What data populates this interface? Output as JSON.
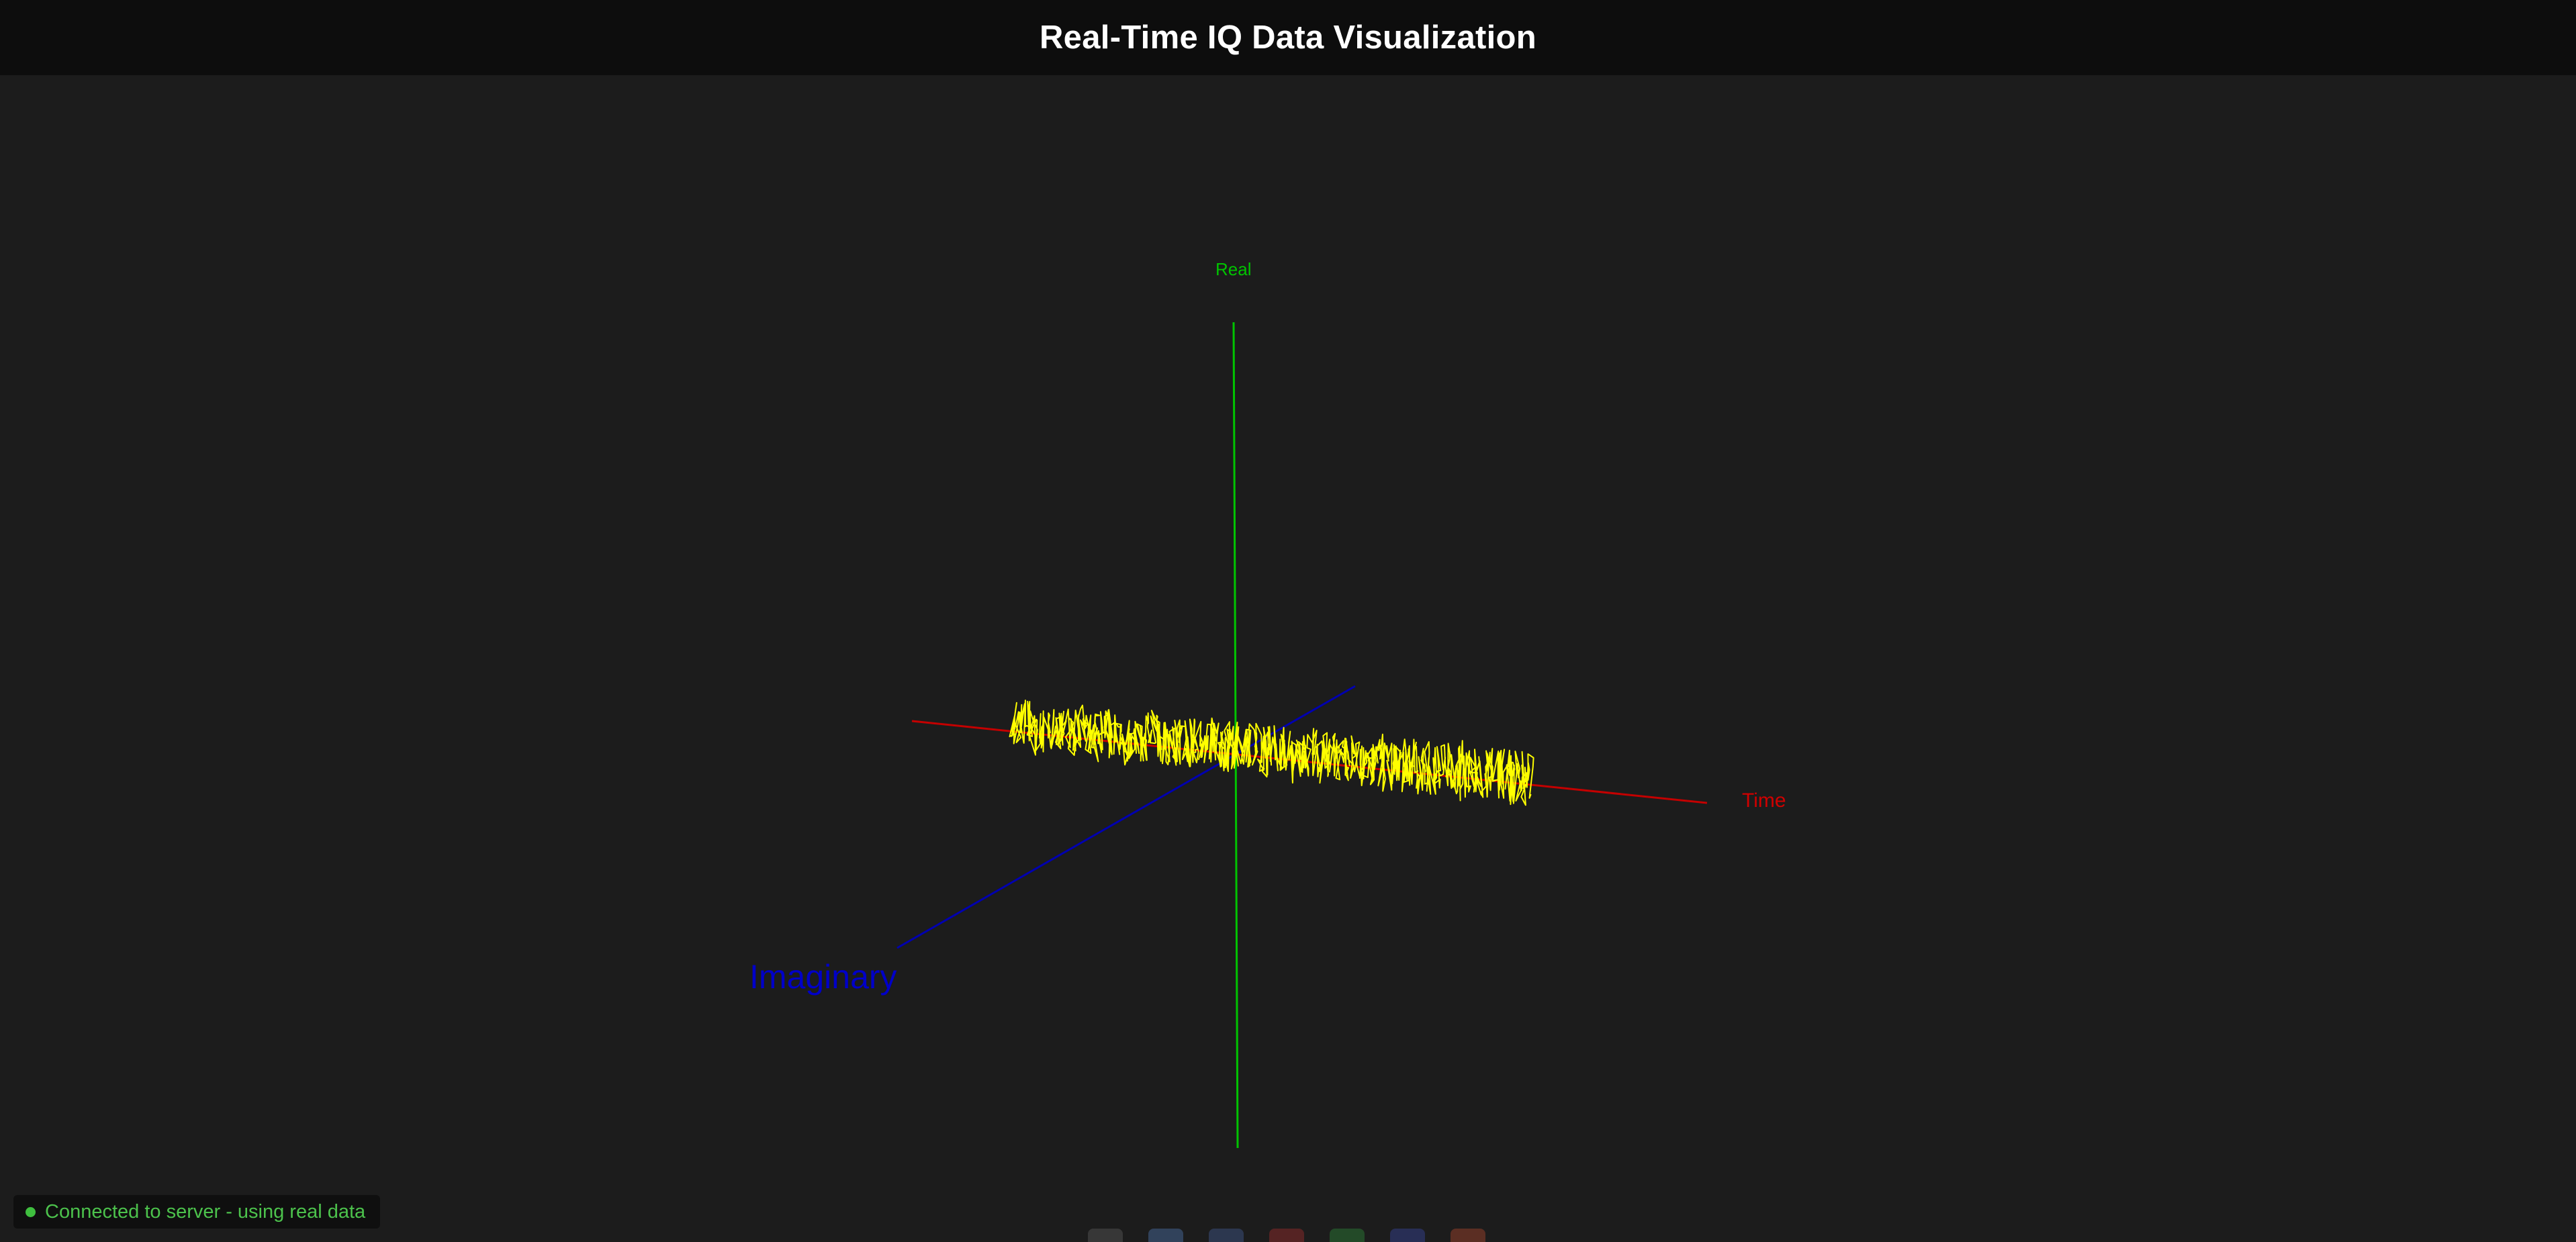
{
  "app": {
    "title": "Real-Time IQ Data Visualization"
  },
  "axes": {
    "real_label": "Real",
    "time_label": "Time",
    "imaginary_label": "Imaginary",
    "colors": {
      "real": "#00c400",
      "time": "#c40000",
      "imaginary": "#0000c8",
      "signal": "#ffff00"
    }
  },
  "status": {
    "text": "Connected to server - using real data",
    "color": "#4cc24c"
  },
  "dock": {
    "icons": [
      {
        "name": "terminal-icon",
        "color": "#6a6a6a"
      },
      {
        "name": "files-icon",
        "color": "#5a8ad0"
      },
      {
        "name": "browser-icon",
        "color": "#4a6ab0"
      },
      {
        "name": "calendar-icon",
        "color": "#c03030"
      },
      {
        "name": "spreadsheet-icon",
        "color": "#30a040"
      },
      {
        "name": "screenshot-icon",
        "color": "#4050c0"
      },
      {
        "name": "media-icon",
        "color": "#d05030"
      }
    ]
  }
}
